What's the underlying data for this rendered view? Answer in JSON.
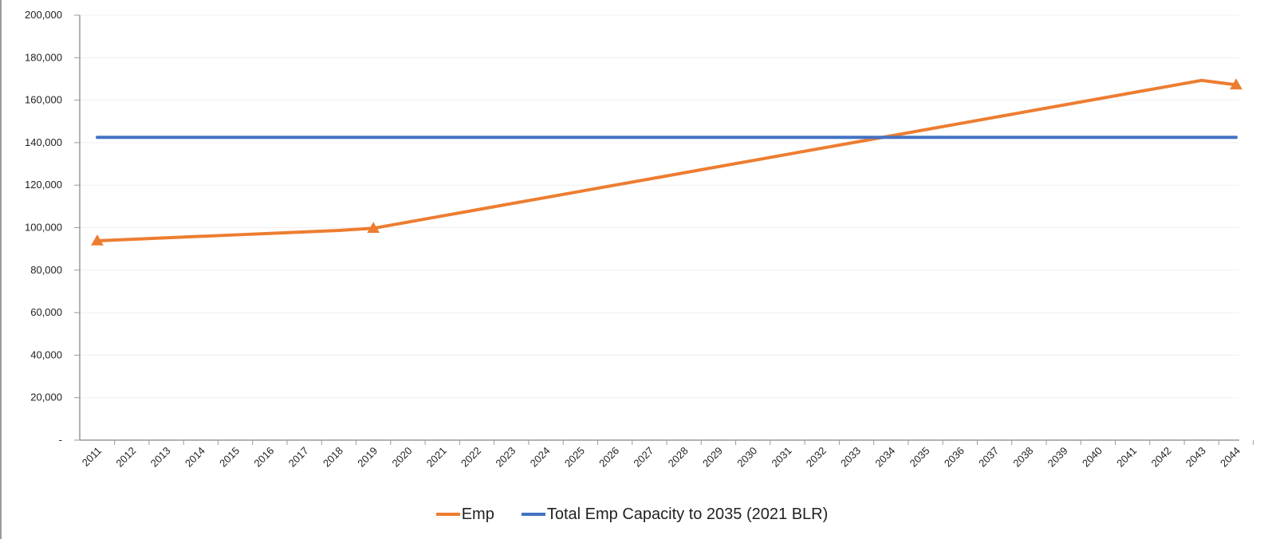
{
  "chart_data": {
    "type": "line",
    "title": "",
    "xlabel": "",
    "ylabel": "",
    "categories": [
      "2011",
      "2012",
      "2013",
      "2014",
      "2015",
      "2016",
      "2017",
      "2018",
      "2019",
      "2020",
      "2021",
      "2022",
      "2023",
      "2024",
      "2025",
      "2026",
      "2027",
      "2028",
      "2029",
      "2030",
      "2031",
      "2032",
      "2033",
      "2034",
      "2035",
      "2036",
      "2037",
      "2038",
      "2039",
      "2040",
      "2041",
      "2042",
      "2043",
      "2044"
    ],
    "ylim": [
      0,
      200000
    ],
    "yticks": [
      0,
      20000,
      40000,
      60000,
      80000,
      100000,
      120000,
      140000,
      160000,
      180000,
      200000
    ],
    "ytick_labels": [
      "-",
      "20,000",
      "40,000",
      "60,000",
      "80,000",
      "100,000",
      "120,000",
      "140,000",
      "160,000",
      "180,000",
      "200,000"
    ],
    "grid": true,
    "legend_position": "bottom",
    "series": [
      {
        "name": "Emp",
        "color": "#ED7D31",
        "marker": "triangle",
        "marker_points": [
          "2011",
          "2019",
          "2044"
        ],
        "values": [
          93800,
          94500,
          95200,
          95900,
          96600,
          97300,
          98000,
          98700,
          99700,
          102600,
          105500,
          108400,
          111300,
          114200,
          117100,
          120000,
          122900,
          125800,
          128700,
          131600,
          134500,
          137400,
          140300,
          143200,
          146100,
          149000,
          151900,
          154800,
          157700,
          160600,
          163500,
          166400,
          169300,
          167200
        ]
      },
      {
        "name": "Total Emp Capacity to 2035 (2021 BLR)",
        "color": "#4472C4",
        "marker": "none",
        "values": [
          142500,
          142500,
          142500,
          142500,
          142500,
          142500,
          142500,
          142500,
          142500,
          142500,
          142500,
          142500,
          142500,
          142500,
          142500,
          142500,
          142500,
          142500,
          142500,
          142500,
          142500,
          142500,
          142500,
          142500,
          142500,
          142500,
          142500,
          142500,
          142500,
          142500,
          142500,
          142500,
          142500,
          142500
        ]
      }
    ]
  }
}
